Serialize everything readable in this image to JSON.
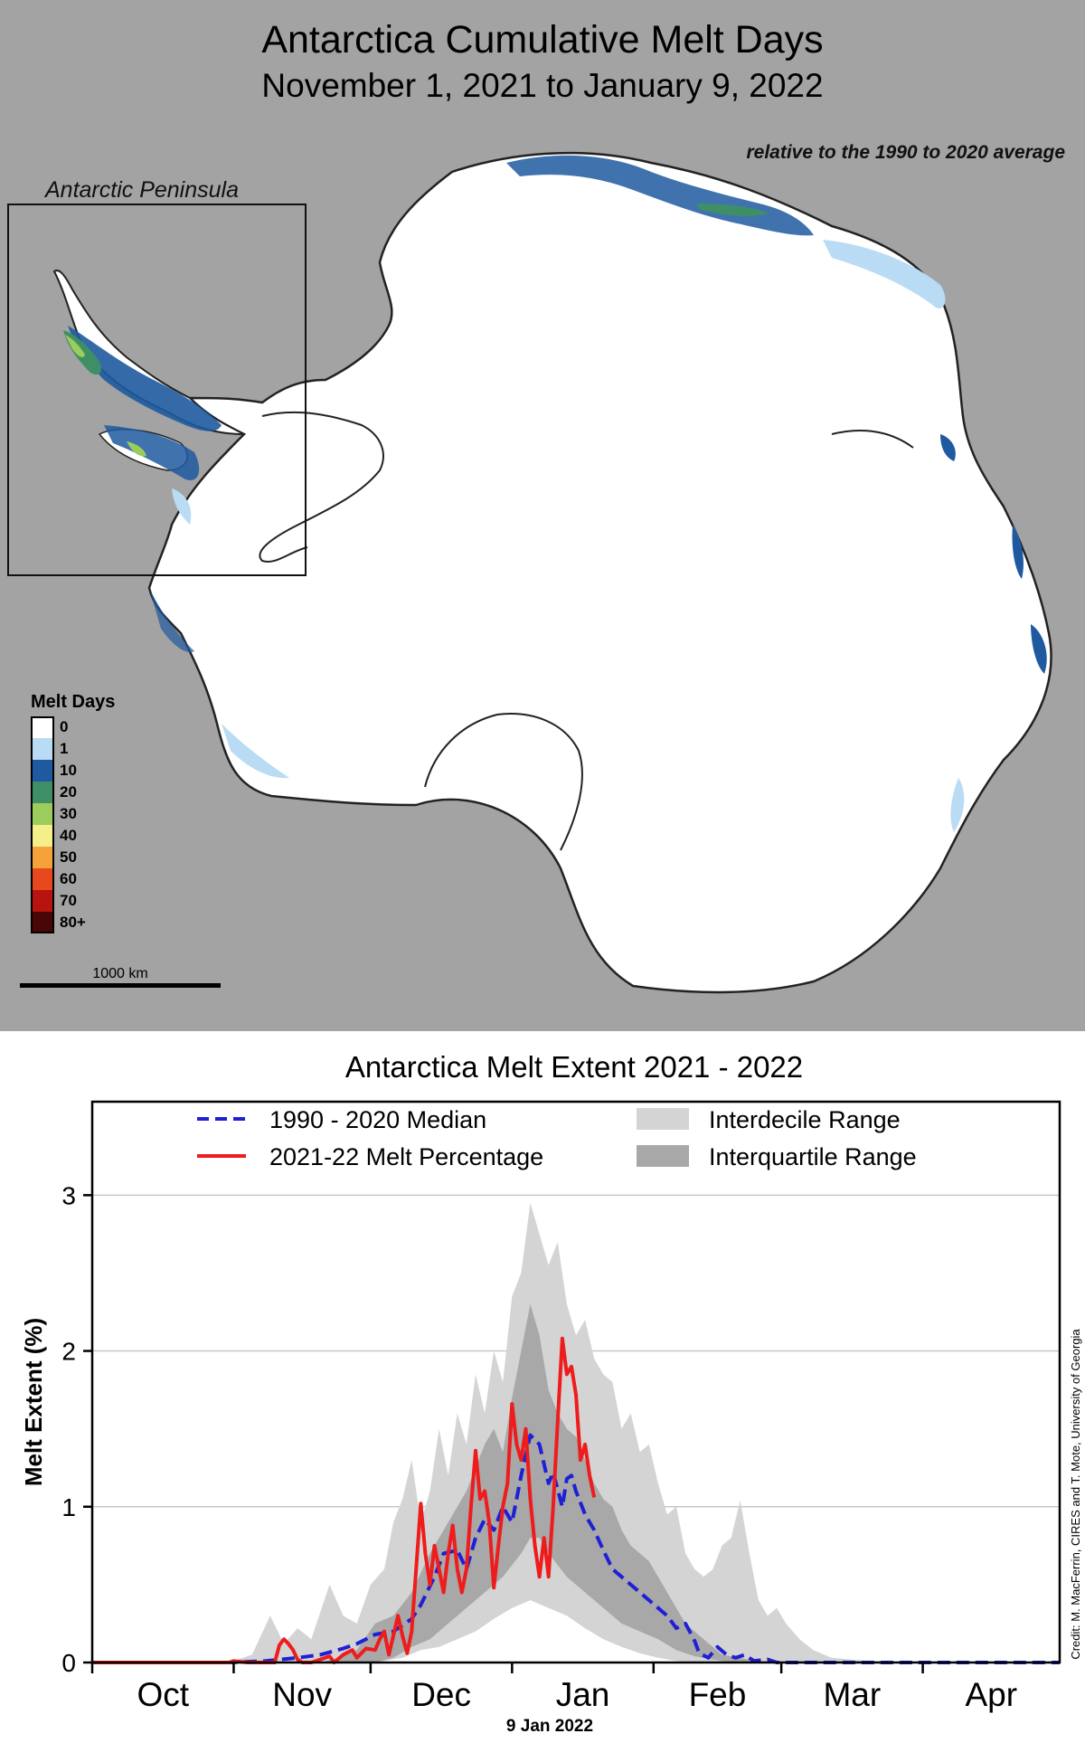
{
  "map": {
    "title": "Antarctica Cumulative Melt Days",
    "subtitle": "November 1, 2021 to January 9, 2022",
    "note": "relative to the 1990 to 2020 average",
    "inset_label": "Antarctic Peninsula",
    "legend_title": "Melt Days",
    "legend": [
      {
        "label": "0",
        "color": "#ffffff"
      },
      {
        "label": "1",
        "color": "#b9dcf4"
      },
      {
        "label": "10",
        "color": "#1f5aa0"
      },
      {
        "label": "20",
        "color": "#3f8f66"
      },
      {
        "label": "30",
        "color": "#9ccc5c"
      },
      {
        "label": "40",
        "color": "#f5ef8a"
      },
      {
        "label": "50",
        "color": "#f6a23a"
      },
      {
        "label": "60",
        "color": "#e8481e"
      },
      {
        "label": "70",
        "color": "#b7140f"
      },
      {
        "label": "80+",
        "color": "#4a0606"
      }
    ],
    "scale_label": "1000 km"
  },
  "chart_data": {
    "type": "line",
    "title": "Antarctica Melt Extent 2021 - 2022",
    "ylabel": "Melt Extent (%)",
    "xlabel": "",
    "ylim": [
      0,
      3.6
    ],
    "xlim": [
      0,
      212
    ],
    "yticks": [
      0,
      1,
      2,
      3
    ],
    "grid": true,
    "legend_position": "top",
    "month_ticks": [
      {
        "label": "Oct",
        "start": 0
      },
      {
        "label": "Nov",
        "start": 31
      },
      {
        "label": "Dec",
        "start": 61
      },
      {
        "label": "Jan",
        "start": 92
      },
      {
        "label": "Feb",
        "start": 123
      },
      {
        "label": "Mar",
        "start": 151
      },
      {
        "label": "Apr",
        "start": 182
      }
    ],
    "current_date_label": "9 Jan 2022",
    "series": [
      {
        "name": "1990 - 2020 Median",
        "style": "dashed",
        "color": "#1f1fd6",
        "points": [
          [
            0,
            0
          ],
          [
            30,
            0
          ],
          [
            38,
            0.01
          ],
          [
            45,
            0.03
          ],
          [
            50,
            0.05
          ],
          [
            55,
            0.09
          ],
          [
            58,
            0.12
          ],
          [
            62,
            0.18
          ],
          [
            66,
            0.2
          ],
          [
            70,
            0.28
          ],
          [
            72,
            0.37
          ],
          [
            75,
            0.55
          ],
          [
            77,
            0.7
          ],
          [
            80,
            0.72
          ],
          [
            82,
            0.6
          ],
          [
            84,
            0.8
          ],
          [
            86,
            0.92
          ],
          [
            88,
            0.85
          ],
          [
            90,
            1.0
          ],
          [
            92,
            0.9
          ],
          [
            94,
            1.2
          ],
          [
            96,
            1.46
          ],
          [
            98,
            1.4
          ],
          [
            100,
            1.15
          ],
          [
            101,
            1.22
          ],
          [
            103,
            1.0
          ],
          [
            104,
            1.18
          ],
          [
            105,
            1.2
          ],
          [
            106,
            1.1
          ],
          [
            108,
            0.95
          ],
          [
            110,
            0.85
          ],
          [
            112,
            0.72
          ],
          [
            114,
            0.6
          ],
          [
            116,
            0.55
          ],
          [
            118,
            0.5
          ],
          [
            120,
            0.45
          ],
          [
            122,
            0.4
          ],
          [
            124,
            0.35
          ],
          [
            126,
            0.3
          ],
          [
            128,
            0.22
          ],
          [
            130,
            0.25
          ],
          [
            132,
            0.14
          ],
          [
            133,
            0.06
          ],
          [
            135,
            0.03
          ],
          [
            137,
            0.1
          ],
          [
            139,
            0.05
          ],
          [
            141,
            0.03
          ],
          [
            143,
            0.05
          ],
          [
            145,
            0.01
          ],
          [
            148,
            0.02
          ],
          [
            150,
            0
          ],
          [
            155,
            0
          ],
          [
            212,
            0
          ]
        ]
      },
      {
        "name": "2021-22 Melt Percentage",
        "style": "solid",
        "color": "#ee1c1c",
        "points": [
          [
            0,
            0
          ],
          [
            30,
            0
          ],
          [
            31,
            0.01
          ],
          [
            34,
            0
          ],
          [
            40,
            0
          ],
          [
            41,
            0.11
          ],
          [
            42,
            0.15
          ],
          [
            43,
            0.12
          ],
          [
            44,
            0.08
          ],
          [
            45,
            0.02
          ],
          [
            46,
            0
          ],
          [
            48,
            0
          ],
          [
            50,
            0.02
          ],
          [
            52,
            0.04
          ],
          [
            53,
            0
          ],
          [
            55,
            0.05
          ],
          [
            57,
            0.08
          ],
          [
            58,
            0.03
          ],
          [
            60,
            0.09
          ],
          [
            62,
            0.08
          ],
          [
            63,
            0.15
          ],
          [
            64,
            0.2
          ],
          [
            65,
            0.05
          ],
          [
            67,
            0.3
          ],
          [
            68,
            0.17
          ],
          [
            69,
            0.06
          ],
          [
            70,
            0.2
          ],
          [
            72,
            1.02
          ],
          [
            73,
            0.7
          ],
          [
            74,
            0.5
          ],
          [
            75,
            0.75
          ],
          [
            76,
            0.6
          ],
          [
            77,
            0.45
          ],
          [
            78,
            0.7
          ],
          [
            79,
            0.88
          ],
          [
            80,
            0.6
          ],
          [
            81,
            0.45
          ],
          [
            82,
            0.6
          ],
          [
            83,
            1.0
          ],
          [
            84,
            1.36
          ],
          [
            85,
            1.05
          ],
          [
            86,
            1.1
          ],
          [
            87,
            0.9
          ],
          [
            88,
            0.48
          ],
          [
            89,
            0.75
          ],
          [
            90,
            1.0
          ],
          [
            91,
            1.15
          ],
          [
            92,
            1.66
          ],
          [
            93,
            1.4
          ],
          [
            94,
            1.3
          ],
          [
            95,
            1.5
          ],
          [
            96,
            1.05
          ],
          [
            97,
            0.75
          ],
          [
            98,
            0.55
          ],
          [
            99,
            0.8
          ],
          [
            100,
            0.55
          ],
          [
            101,
            1.0
          ],
          [
            102,
            1.55
          ],
          [
            103,
            2.08
          ],
          [
            104,
            1.85
          ],
          [
            105,
            1.9
          ],
          [
            106,
            1.72
          ],
          [
            107,
            1.3
          ],
          [
            108,
            1.4
          ],
          [
            109,
            1.2
          ],
          [
            110,
            1.06
          ]
        ]
      }
    ],
    "ranges": [
      {
        "name": "Interdecile Range",
        "color": "#d4d4d4",
        "upper": [
          [
            0,
            0
          ],
          [
            30,
            0
          ],
          [
            35,
            0.05
          ],
          [
            39,
            0.3
          ],
          [
            42,
            0.12
          ],
          [
            45,
            0.22
          ],
          [
            48,
            0.15
          ],
          [
            52,
            0.5
          ],
          [
            55,
            0.3
          ],
          [
            58,
            0.25
          ],
          [
            61,
            0.5
          ],
          [
            64,
            0.6
          ],
          [
            66,
            0.9
          ],
          [
            68,
            1.05
          ],
          [
            70,
            1.3
          ],
          [
            72,
            0.9
          ],
          [
            74,
            1.1
          ],
          [
            76,
            1.5
          ],
          [
            78,
            1.2
          ],
          [
            80,
            1.6
          ],
          [
            82,
            1.4
          ],
          [
            84,
            1.85
          ],
          [
            86,
            1.6
          ],
          [
            88,
            2.0
          ],
          [
            90,
            1.8
          ],
          [
            92,
            2.35
          ],
          [
            94,
            2.5
          ],
          [
            96,
            2.95
          ],
          [
            98,
            2.75
          ],
          [
            100,
            2.55
          ],
          [
            102,
            2.7
          ],
          [
            104,
            2.3
          ],
          [
            106,
            2.1
          ],
          [
            108,
            2.2
          ],
          [
            110,
            1.95
          ],
          [
            112,
            1.85
          ],
          [
            114,
            1.8
          ],
          [
            116,
            1.5
          ],
          [
            118,
            1.6
          ],
          [
            120,
            1.35
          ],
          [
            122,
            1.4
          ],
          [
            124,
            1.15
          ],
          [
            126,
            0.95
          ],
          [
            128,
            1.0
          ],
          [
            130,
            0.7
          ],
          [
            132,
            0.6
          ],
          [
            134,
            0.55
          ],
          [
            136,
            0.6
          ],
          [
            138,
            0.75
          ],
          [
            140,
            0.8
          ],
          [
            142,
            1.04
          ],
          [
            144,
            0.7
          ],
          [
            146,
            0.4
          ],
          [
            148,
            0.3
          ],
          [
            150,
            0.35
          ],
          [
            152,
            0.25
          ],
          [
            155,
            0.15
          ],
          [
            158,
            0.08
          ],
          [
            162,
            0.03
          ],
          [
            170,
            0.01
          ],
          [
            180,
            0
          ],
          [
            212,
            0
          ]
        ],
        "lower": [
          [
            0,
            0
          ],
          [
            60,
            0
          ],
          [
            64,
            0.01
          ],
          [
            68,
            0.03
          ],
          [
            72,
            0.08
          ],
          [
            76,
            0.1
          ],
          [
            80,
            0.15
          ],
          [
            84,
            0.2
          ],
          [
            88,
            0.28
          ],
          [
            92,
            0.35
          ],
          [
            96,
            0.4
          ],
          [
            100,
            0.35
          ],
          [
            104,
            0.3
          ],
          [
            108,
            0.22
          ],
          [
            112,
            0.15
          ],
          [
            116,
            0.1
          ],
          [
            120,
            0.06
          ],
          [
            124,
            0.03
          ],
          [
            128,
            0.01
          ],
          [
            132,
            0
          ],
          [
            212,
            0
          ]
        ]
      },
      {
        "name": "Interquartile Range",
        "color": "#a8a8a8",
        "upper": [
          [
            0,
            0
          ],
          [
            50,
            0
          ],
          [
            55,
            0.04
          ],
          [
            58,
            0.08
          ],
          [
            62,
            0.25
          ],
          [
            66,
            0.3
          ],
          [
            70,
            0.45
          ],
          [
            74,
            0.7
          ],
          [
            78,
            0.9
          ],
          [
            82,
            1.1
          ],
          [
            86,
            1.4
          ],
          [
            88,
            1.5
          ],
          [
            90,
            1.35
          ],
          [
            92,
            1.7
          ],
          [
            94,
            2.0
          ],
          [
            96,
            2.3
          ],
          [
            98,
            2.1
          ],
          [
            100,
            1.75
          ],
          [
            102,
            1.6
          ],
          [
            104,
            1.5
          ],
          [
            106,
            1.45
          ],
          [
            108,
            1.3
          ],
          [
            110,
            1.15
          ],
          [
            112,
            1.05
          ],
          [
            114,
            1.0
          ],
          [
            116,
            0.85
          ],
          [
            118,
            0.75
          ],
          [
            120,
            0.7
          ],
          [
            122,
            0.65
          ],
          [
            124,
            0.55
          ],
          [
            126,
            0.45
          ],
          [
            128,
            0.35
          ],
          [
            130,
            0.25
          ],
          [
            132,
            0.2
          ],
          [
            134,
            0.15
          ],
          [
            136,
            0.1
          ],
          [
            138,
            0.05
          ],
          [
            140,
            0.04
          ],
          [
            142,
            0.03
          ],
          [
            145,
            0.01
          ],
          [
            148,
            0
          ],
          [
            212,
            0
          ]
        ],
        "lower": [
          [
            0,
            0
          ],
          [
            62,
            0
          ],
          [
            66,
            0.03
          ],
          [
            70,
            0.1
          ],
          [
            74,
            0.15
          ],
          [
            78,
            0.25
          ],
          [
            82,
            0.35
          ],
          [
            86,
            0.45
          ],
          [
            90,
            0.55
          ],
          [
            94,
            0.7
          ],
          [
            96,
            0.8
          ],
          [
            98,
            0.8
          ],
          [
            100,
            0.7
          ],
          [
            104,
            0.55
          ],
          [
            108,
            0.45
          ],
          [
            112,
            0.35
          ],
          [
            116,
            0.25
          ],
          [
            120,
            0.2
          ],
          [
            124,
            0.15
          ],
          [
            128,
            0.08
          ],
          [
            132,
            0.04
          ],
          [
            136,
            0.02
          ],
          [
            140,
            0
          ],
          [
            212,
            0
          ]
        ]
      }
    ]
  },
  "credit": "Credit: M. MacFerrin, CIRES and T. Mote, University of Georgia"
}
